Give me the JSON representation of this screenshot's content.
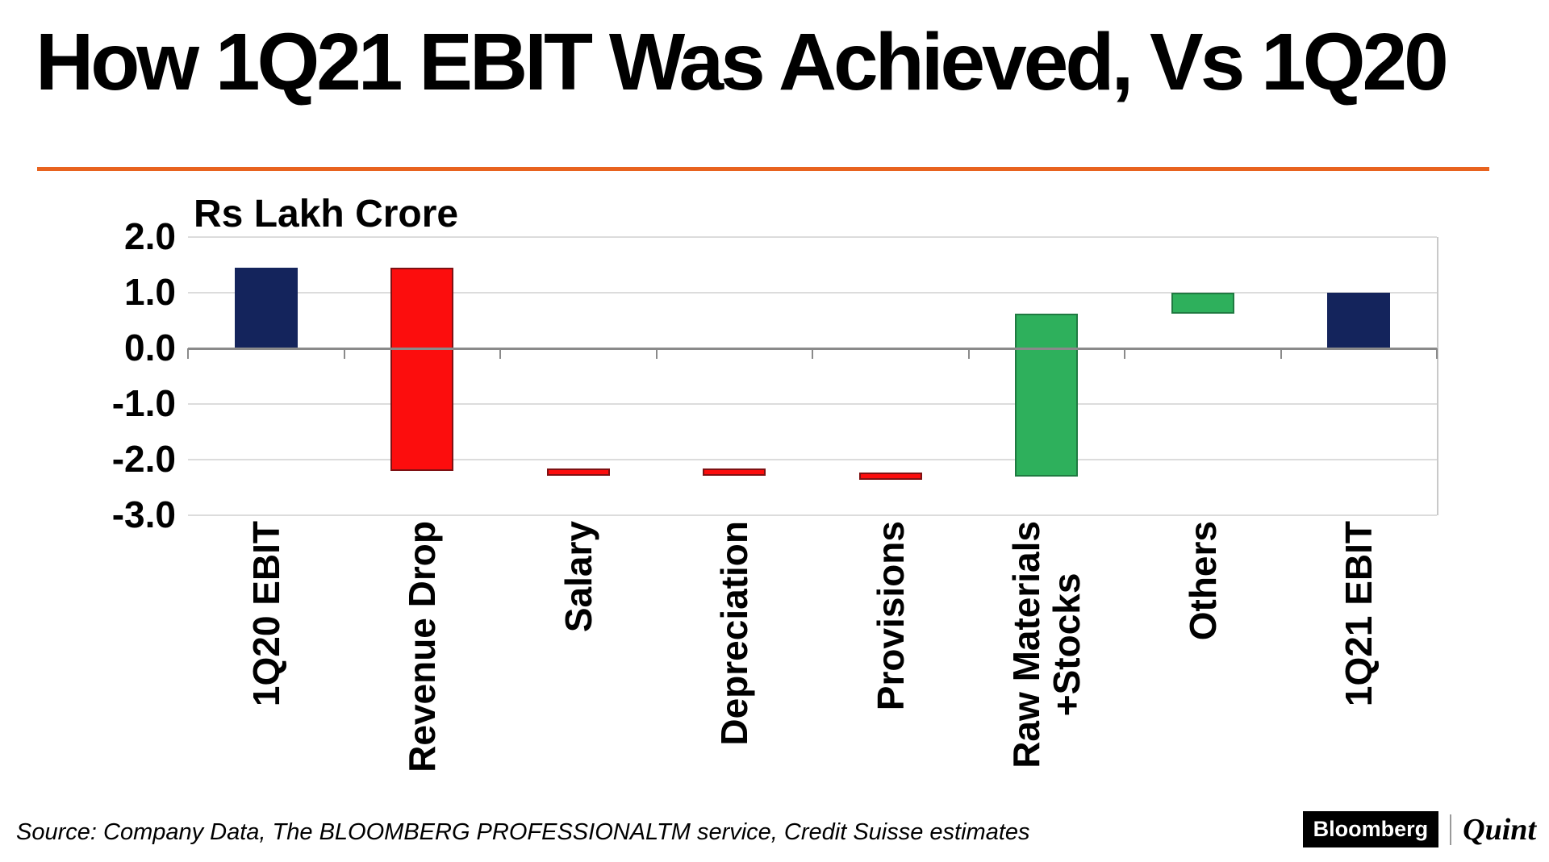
{
  "header": {
    "title": "How 1Q21 EBIT Was Achieved, Vs 1Q20"
  },
  "chart_data": {
    "type": "bar",
    "subtype": "waterfall",
    "title": "How 1Q21 EBIT Was Achieved, Vs 1Q20",
    "unit_label": "Rs Lakh Crore",
    "ylim": [
      -3.0,
      2.0
    ],
    "yticks": [
      2.0,
      1.0,
      0.0,
      -1.0,
      -2.0,
      -3.0
    ],
    "ytick_labels": [
      "2.0",
      "1.0",
      "0.0",
      "-1.0",
      "-2.0",
      "-3.0"
    ],
    "grid": true,
    "legend": false,
    "categories": [
      "1Q20 EBIT",
      "Revenue Drop",
      "Salary",
      "Depreciation",
      "Provisions",
      "Raw Materials\n+Stocks",
      "Others",
      "1Q21 EBIT"
    ],
    "bars": [
      {
        "label": "1Q20 EBIT",
        "from": 0,
        "to": 1.45,
        "color": "navy"
      },
      {
        "label": "Revenue Drop",
        "from": 1.45,
        "to": -2.2,
        "color": "red"
      },
      {
        "label": "Salary",
        "from": -2.2,
        "to": -2.26,
        "color": "red"
      },
      {
        "label": "Depreciation",
        "from": -2.2,
        "to": -2.26,
        "color": "red"
      },
      {
        "label": "Provisions",
        "from": -2.26,
        "to": -2.33,
        "color": "red"
      },
      {
        "label": "Raw Materials\n+Stocks",
        "from": -2.3,
        "to": 0.62,
        "color": "green"
      },
      {
        "label": "Others",
        "from": 0.62,
        "to": 1.0,
        "color": "green"
      },
      {
        "label": "1Q21 EBIT",
        "from": 0,
        "to": 1.0,
        "color": "navy"
      }
    ],
    "colors": {
      "navy": {
        "fill": "#14245c",
        "edge": "#14245c"
      },
      "red": {
        "fill": "#fc0d0d",
        "edge": "#7e1113"
      },
      "green": {
        "fill": "#2eb05c",
        "edge": "#1f7a41"
      }
    },
    "accent_rule_color": "#e8631f"
  },
  "footer": {
    "source": "Source: Company Data, The BLOOMBERG PROFESSIONALTM service, Credit Suisse estimates",
    "bloomberg": "Bloomberg",
    "quint": "Quint"
  }
}
